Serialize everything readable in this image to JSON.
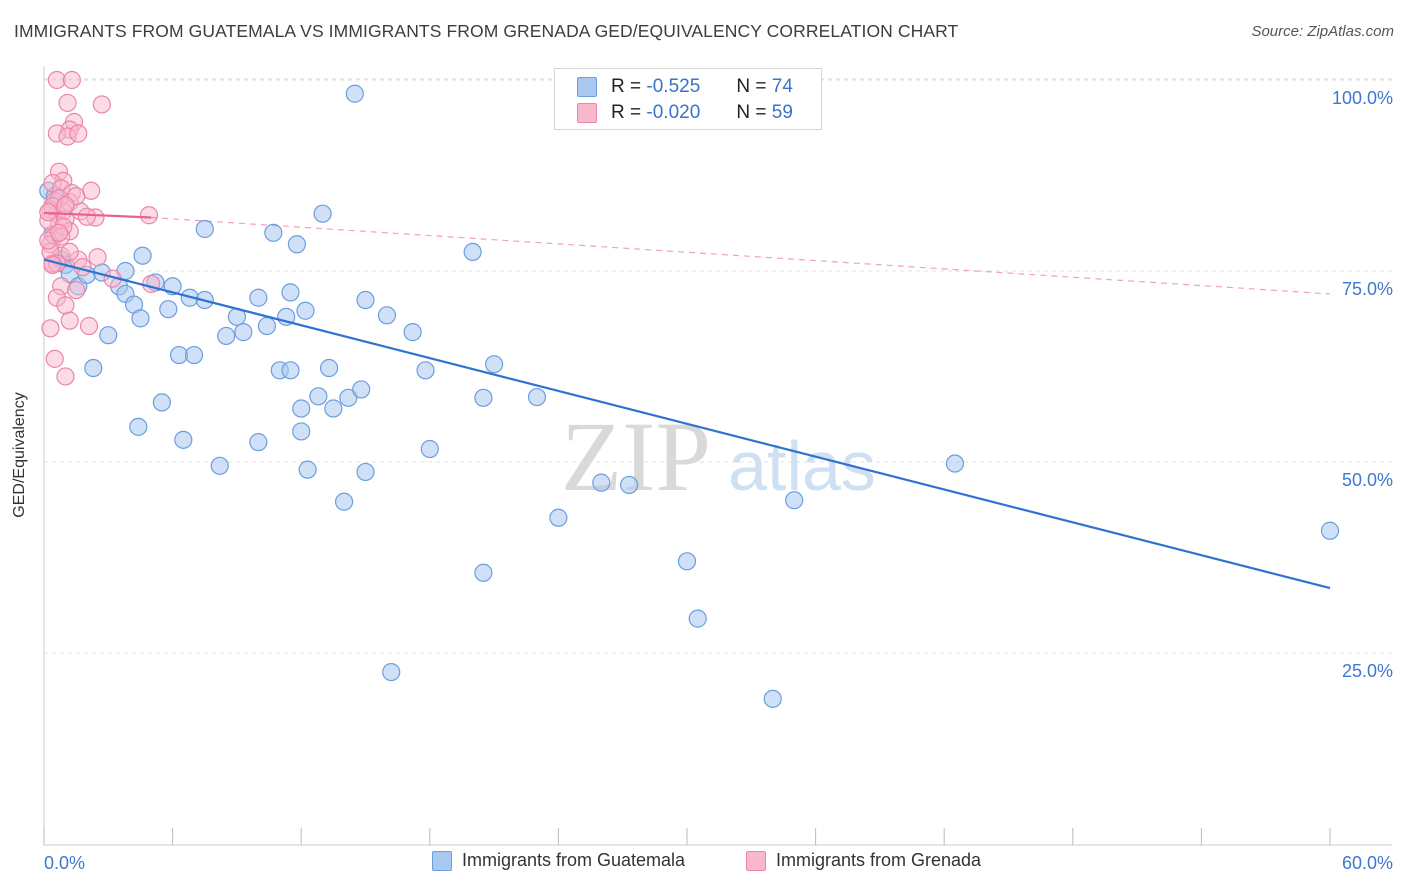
{
  "title": "IMMIGRANTS FROM GUATEMALA VS IMMIGRANTS FROM GRENADA GED/EQUIVALENCY CORRELATION CHART",
  "source": "Source: ZipAtlas.com",
  "watermark": {
    "zip": "ZIP",
    "atlas": "atlas"
  },
  "colors": {
    "blue_fill": "#a9c8f0",
    "blue_stroke": "#6a9ee0",
    "blue_line": "#2f72d0",
    "pink_fill": "#f7b8cc",
    "pink_stroke": "#ec86a8",
    "pink_line": "#e8609a",
    "tick_label": "#3f78d0",
    "grid": "#e0e0e0"
  },
  "stats": [
    {
      "r_label": "R =",
      "r_value": "-0.525",
      "n_label": "N =",
      "n_value": "74"
    },
    {
      "r_label": "R =",
      "r_value": "-0.020",
      "n_label": "N =",
      "n_value": "59"
    }
  ],
  "legend": [
    "Immigrants from Guatemala",
    "Immigrants from Grenada"
  ],
  "chart_data": {
    "type": "scatter",
    "title": "IMMIGRANTS FROM GUATEMALA VS IMMIGRANTS FROM GRENADA GED/EQUIVALENCY CORRELATION CHART",
    "xlabel": "",
    "ylabel": "GED/Equivalency",
    "xlim": [
      0,
      60
    ],
    "ylim": [
      0,
      102
    ],
    "x_tick_labels": [
      "0.0%",
      "60.0%"
    ],
    "y_ticks": [
      25,
      50,
      75,
      100
    ],
    "y_tick_labels": [
      "25.0%",
      "50.0%",
      "75.0%",
      "100.0%"
    ],
    "grid": true,
    "legend_position": "bottom",
    "series": [
      {
        "name": "Immigrants from Guatemala",
        "color": "#a9c8f0",
        "trend": {
          "x": [
            0,
            60
          ],
          "y": [
            76.5,
            33.5
          ],
          "style": "solid"
        },
        "points": [
          [
            14.5,
            98.2
          ],
          [
            0.2,
            85.5
          ],
          [
            0.5,
            84.8
          ],
          [
            0.4,
            79.8
          ],
          [
            0.8,
            76.5
          ],
          [
            1.0,
            75.8
          ],
          [
            1.2,
            74.6
          ],
          [
            1.6,
            73.0
          ],
          [
            2.0,
            74.5
          ],
          [
            2.7,
            74.8
          ],
          [
            3.5,
            73.0
          ],
          [
            3.8,
            75.0
          ],
          [
            3.8,
            72.0
          ],
          [
            4.2,
            70.6
          ],
          [
            4.6,
            77.0
          ],
          [
            5.2,
            73.5
          ],
          [
            6.0,
            73.0
          ],
          [
            7.5,
            80.5
          ],
          [
            13.0,
            82.5
          ],
          [
            10.7,
            80.0
          ],
          [
            11.8,
            78.5
          ],
          [
            2.3,
            62.3
          ],
          [
            3.0,
            66.6
          ],
          [
            4.5,
            68.8
          ],
          [
            5.8,
            70.0
          ],
          [
            6.8,
            71.5
          ],
          [
            7.5,
            71.2
          ],
          [
            9.0,
            69.0
          ],
          [
            9.3,
            67.0
          ],
          [
            10.0,
            71.5
          ],
          [
            11.3,
            69.0
          ],
          [
            10.4,
            67.8
          ],
          [
            11.5,
            72.2
          ],
          [
            12.2,
            69.8
          ],
          [
            15.0,
            71.2
          ],
          [
            16.0,
            69.2
          ],
          [
            17.2,
            67.0
          ],
          [
            20.0,
            77.5
          ],
          [
            5.5,
            57.8
          ],
          [
            6.3,
            64.0
          ],
          [
            7.0,
            64.0
          ],
          [
            8.5,
            66.5
          ],
          [
            11.0,
            62.0
          ],
          [
            11.5,
            62.0
          ],
          [
            12.0,
            57.0
          ],
          [
            12.8,
            58.6
          ],
          [
            13.3,
            62.3
          ],
          [
            14.2,
            58.4
          ],
          [
            14.8,
            59.5
          ],
          [
            13.5,
            57.0
          ],
          [
            17.8,
            62.0
          ],
          [
            20.5,
            58.4
          ],
          [
            21.0,
            62.8
          ],
          [
            23.0,
            58.5
          ],
          [
            4.4,
            54.6
          ],
          [
            6.5,
            52.9
          ],
          [
            8.2,
            49.5
          ],
          [
            10.0,
            52.6
          ],
          [
            12.3,
            49.0
          ],
          [
            12.0,
            54.0
          ],
          [
            14.0,
            44.8
          ],
          [
            15.0,
            48.7
          ],
          [
            18.0,
            51.7
          ],
          [
            26.0,
            47.3
          ],
          [
            27.3,
            47.0
          ],
          [
            35.0,
            45.0
          ],
          [
            20.5,
            35.5
          ],
          [
            30.0,
            37.0
          ],
          [
            30.5,
            29.5
          ],
          [
            24.0,
            42.7
          ],
          [
            16.2,
            22.5
          ],
          [
            34.0,
            19.0
          ],
          [
            60.0,
            41.0
          ],
          [
            42.5,
            49.8
          ]
        ]
      },
      {
        "name": "Immigrants from Grenada",
        "color": "#f7b8cc",
        "trend": {
          "x": [
            0,
            5.0
          ],
          "y": [
            82.6,
            82.0
          ],
          "style": "solid",
          "extended": {
            "x": [
              5.0,
              60
            ],
            "y": [
              82.0,
              72.0
            ],
            "style": "dashed"
          }
        },
        "points": [
          [
            0.6,
            100.0
          ],
          [
            1.3,
            100.0
          ],
          [
            1.1,
            97.0
          ],
          [
            2.7,
            96.8
          ],
          [
            1.4,
            94.5
          ],
          [
            1.2,
            93.5
          ],
          [
            0.6,
            93.0
          ],
          [
            1.1,
            92.6
          ],
          [
            1.6,
            93.0
          ],
          [
            0.7,
            88.0
          ],
          [
            0.9,
            86.8
          ],
          [
            0.4,
            86.5
          ],
          [
            0.8,
            85.8
          ],
          [
            1.3,
            85.2
          ],
          [
            2.2,
            85.5
          ],
          [
            0.5,
            84.2
          ],
          [
            0.7,
            84.5
          ],
          [
            1.2,
            84.0
          ],
          [
            0.3,
            83.0
          ],
          [
            0.6,
            82.5
          ],
          [
            0.9,
            82.8
          ],
          [
            1.7,
            82.8
          ],
          [
            2.4,
            82.0
          ],
          [
            0.7,
            81.0
          ],
          [
            0.2,
            81.6
          ],
          [
            1.0,
            81.8
          ],
          [
            1.2,
            80.2
          ],
          [
            0.5,
            79.6
          ],
          [
            0.3,
            78.5
          ],
          [
            0.8,
            77.0
          ],
          [
            0.4,
            76.0
          ],
          [
            1.6,
            76.5
          ],
          [
            1.8,
            75.5
          ],
          [
            4.9,
            82.3
          ],
          [
            3.2,
            74.0
          ],
          [
            0.8,
            73.0
          ],
          [
            0.6,
            71.5
          ],
          [
            1.0,
            70.5
          ],
          [
            1.2,
            68.5
          ],
          [
            0.3,
            67.5
          ],
          [
            2.1,
            67.8
          ],
          [
            0.5,
            63.5
          ],
          [
            1.0,
            61.2
          ],
          [
            0.4,
            83.5
          ],
          [
            1.5,
            84.8
          ],
          [
            2.0,
            82.1
          ],
          [
            0.9,
            80.8
          ],
          [
            0.3,
            77.5
          ],
          [
            0.2,
            79.0
          ],
          [
            5.0,
            73.3
          ],
          [
            0.6,
            76.0
          ],
          [
            2.5,
            76.8
          ],
          [
            0.2,
            82.7
          ],
          [
            1.0,
            83.6
          ],
          [
            1.5,
            72.5
          ],
          [
            0.8,
            79.5
          ],
          [
            0.4,
            75.8
          ],
          [
            1.2,
            77.5
          ],
          [
            0.7,
            80.0
          ]
        ]
      }
    ]
  }
}
